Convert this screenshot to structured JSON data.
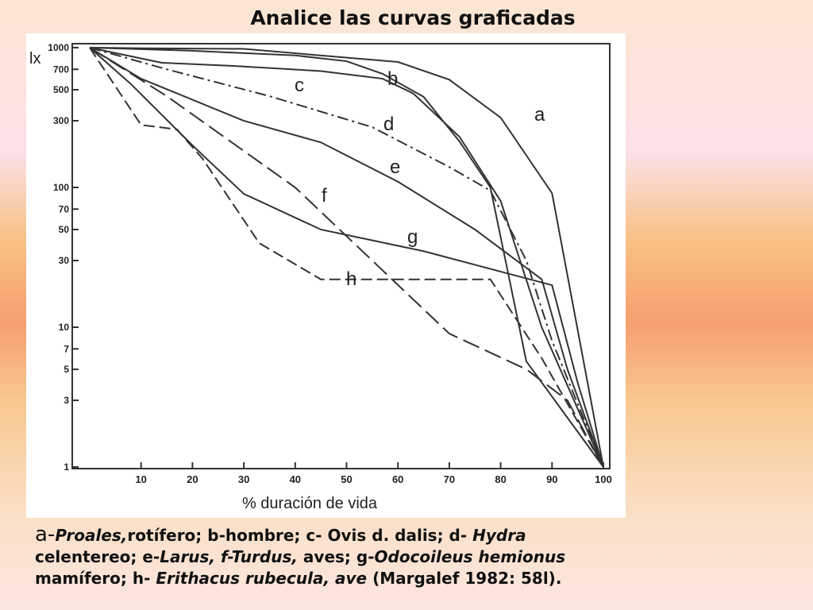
{
  "title": "Analice las curvas graficadas",
  "caption": [
    "a-",
    "Proales,",
    "rotífero; b-hombre; c- Ovis d. dalis; d- ",
    "Hydra",
    "celentereo; e-",
    "Larus, f-Turdus,",
    " aves; g-",
    "Odocoileus hemionus",
    "mamífero; h- ",
    "Erithacus rubecula, ave",
    " (Margalef 1982: 58l)."
  ],
  "chart_data": {
    "type": "line",
    "log_y": true,
    "ylabel": "lx",
    "xlabel": "% duración de vida",
    "xlim": [
      0,
      100
    ],
    "ylim": [
      1,
      1000
    ],
    "xticks": [
      10,
      20,
      30,
      40,
      50,
      60,
      70,
      80,
      90,
      100
    ],
    "yticks": [
      1000,
      700,
      500,
      300,
      100,
      70,
      50,
      30,
      10,
      7,
      5,
      3,
      1
    ],
    "series": [
      {
        "name": "a",
        "color": "#333333",
        "dash": "solid",
        "x": [
          0,
          10,
          30,
          60,
          70,
          80,
          90,
          100
        ],
        "values": [
          1000,
          990,
          980,
          790,
          590,
          316,
          91,
          1
        ]
      },
      {
        "name": "b",
        "color": "#333333",
        "dash": "solid",
        "x": [
          0,
          20,
          40,
          50,
          57,
          65,
          72,
          78,
          85,
          100
        ],
        "values": [
          1000,
          950,
          880,
          800,
          650,
          445,
          213,
          100,
          5.7,
          1
        ]
      },
      {
        "name": "c",
        "color": "#333333",
        "dash": "solid",
        "x": [
          0,
          14,
          28,
          45,
          57,
          63,
          72,
          80,
          88,
          100
        ],
        "values": [
          1000,
          780,
          740,
          680,
          600,
          470,
          230,
          80,
          10,
          1
        ]
      },
      {
        "name": "d",
        "color": "#333333",
        "dash": "dashdot",
        "x": [
          0,
          15,
          35,
          55,
          70,
          78,
          85,
          90,
          100
        ],
        "values": [
          1000,
          700,
          450,
          270,
          140,
          95,
          30,
          8,
          1
        ]
      },
      {
        "name": "e",
        "color": "#333333",
        "dash": "solid",
        "x": [
          0,
          10,
          30,
          45,
          60,
          75,
          88,
          93,
          100
        ],
        "values": [
          1000,
          600,
          300,
          210,
          110,
          50,
          22,
          5,
          1
        ]
      },
      {
        "name": "f",
        "color": "#333333",
        "dash": "longdash",
        "x": [
          0,
          15,
          40,
          55,
          70,
          85,
          93,
          100
        ],
        "values": [
          1000,
          450,
          100,
          30,
          9,
          5,
          3,
          1
        ]
      },
      {
        "name": "g",
        "color": "#333333",
        "dash": "solid",
        "x": [
          0,
          8,
          20,
          30,
          45,
          65,
          80,
          90,
          95,
          100
        ],
        "values": [
          1000,
          550,
          200,
          90,
          50,
          35,
          25,
          20,
          4,
          1
        ]
      },
      {
        "name": "h",
        "color": "#333333",
        "dash": "dashed",
        "x": [
          0,
          10,
          17,
          22,
          33,
          45,
          60,
          78,
          88,
          100
        ],
        "values": [
          1000,
          280,
          260,
          160,
          40,
          22,
          22,
          22,
          6,
          1
        ]
      }
    ]
  }
}
